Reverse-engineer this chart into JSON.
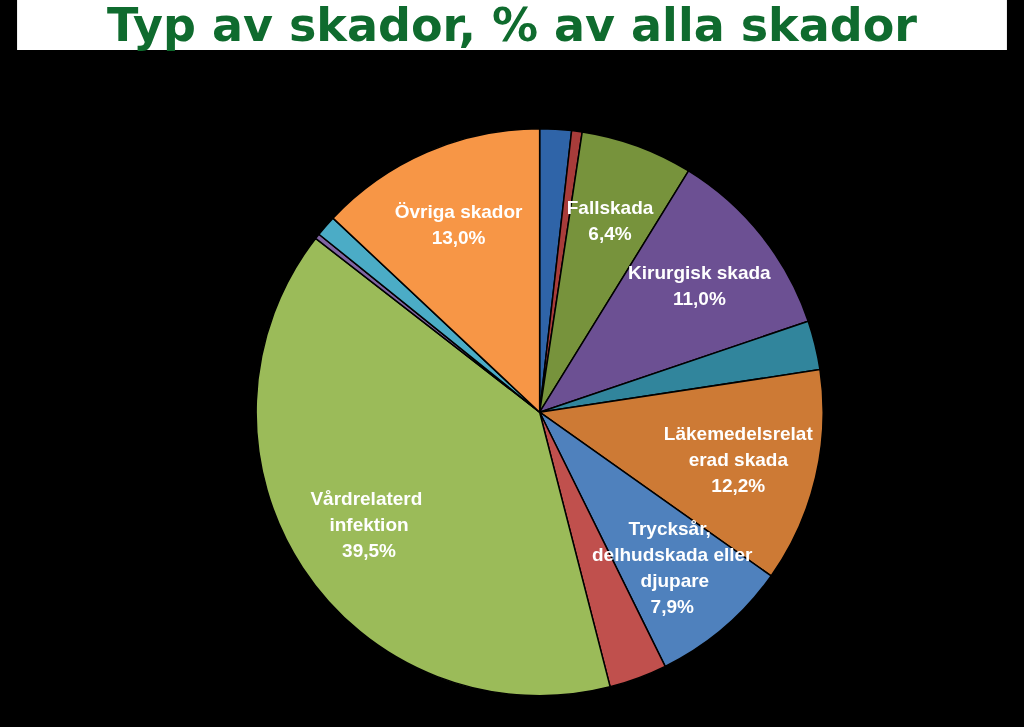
{
  "chart_data": {
    "type": "pie",
    "title": "Typ av skador, % av alla skador",
    "categories": [
      null,
      null,
      "Fallskada",
      "Kirurgisk skada",
      null,
      "Läkemedelsrelaterad skada",
      "Trycksår, delhudskada eller djupare",
      null,
      "Vårdrelaterd infektion",
      null,
      null,
      "Övriga skador"
    ],
    "values": [
      1.8,
      0.6,
      6.4,
      11.0,
      2.8,
      12.2,
      7.9,
      3.3,
      39.5,
      0.3,
      1.2,
      13.0
    ],
    "value_labels": [
      null,
      null,
      "6,4%",
      "11,0%",
      null,
      "12,2%",
      "7,9%",
      null,
      "39,5%",
      null,
      null,
      "13,0%"
    ],
    "colors": [
      "#2f64a8",
      "#a83c3a",
      "#77933c",
      "#6c5093",
      "#31859c",
      "#cd7a35",
      "#4f81bd",
      "#c0504d",
      "#9bbb59",
      "#8064a2",
      "#4bacc6",
      "#f79646"
    ]
  }
}
